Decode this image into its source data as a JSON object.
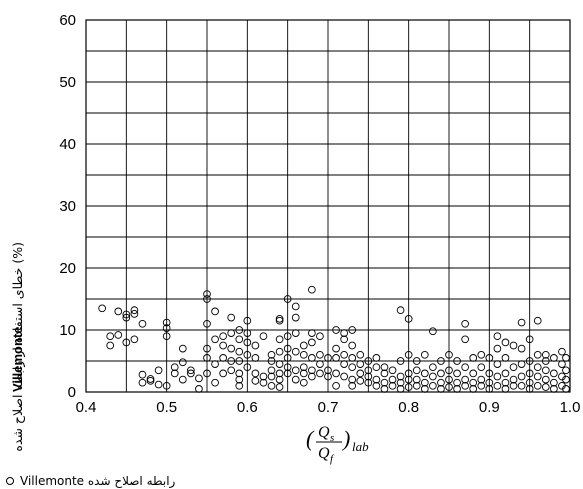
{
  "chart_data": {
    "type": "scatter",
    "xlim": [
      0.4,
      1.0
    ],
    "ylim": [
      0,
      60
    ],
    "x_ticks": [
      "0.4",
      "0.5",
      "0.6",
      "0.7",
      "0.8",
      "0.9",
      "1.0"
    ],
    "y_ticks": [
      "0",
      "10",
      "20",
      "30",
      "40",
      "50",
      "60"
    ],
    "grid": true,
    "xlabel": {
      "numerator": "Q",
      "numerator_sub": "s",
      "denominator": "Q",
      "denominator_sub": "f",
      "suffix": "lab"
    },
    "ylabel": {
      "prefix": "Villemonte",
      "text": "(%) خطای استفاده از رابطه اصلاح شده"
    },
    "legend": {
      "position": "bottom-left",
      "label": "رابطه اصلاح شده Villemonte"
    },
    "series": [
      {
        "marker": "open-circle",
        "color": "#000000",
        "points": [
          [
            0.42,
            13.5
          ],
          [
            0.43,
            9.0
          ],
          [
            0.43,
            7.5
          ],
          [
            0.44,
            9.2
          ],
          [
            0.44,
            13.0
          ],
          [
            0.45,
            12.5
          ],
          [
            0.45,
            8.0
          ],
          [
            0.45,
            12.0
          ],
          [
            0.46,
            13.2
          ],
          [
            0.46,
            12.6
          ],
          [
            0.46,
            8.5
          ],
          [
            0.47,
            11.0
          ],
          [
            0.47,
            1.5
          ],
          [
            0.47,
            2.8
          ],
          [
            0.48,
            2.1
          ],
          [
            0.48,
            1.8
          ],
          [
            0.49,
            3.5
          ],
          [
            0.49,
            1.2
          ],
          [
            0.5,
            11.2
          ],
          [
            0.5,
            10.3
          ],
          [
            0.5,
            9.0
          ],
          [
            0.5,
            1.0
          ],
          [
            0.51,
            4.0
          ],
          [
            0.51,
            3.0
          ],
          [
            0.52,
            2.0
          ],
          [
            0.52,
            7.0
          ],
          [
            0.52,
            4.8
          ],
          [
            0.53,
            3.5
          ],
          [
            0.53,
            3.0
          ],
          [
            0.54,
            0.5
          ],
          [
            0.54,
            2.2
          ],
          [
            0.55,
            15.8
          ],
          [
            0.55,
            15.0
          ],
          [
            0.55,
            11.0
          ],
          [
            0.55,
            7.0
          ],
          [
            0.55,
            5.5
          ],
          [
            0.55,
            3.0
          ],
          [
            0.56,
            13.0
          ],
          [
            0.56,
            8.5
          ],
          [
            0.56,
            4.5
          ],
          [
            0.56,
            1.5
          ],
          [
            0.57,
            9.0
          ],
          [
            0.57,
            7.5
          ],
          [
            0.57,
            5.5
          ],
          [
            0.57,
            3.0
          ],
          [
            0.58,
            12.0
          ],
          [
            0.58,
            9.5
          ],
          [
            0.58,
            7.0
          ],
          [
            0.58,
            5.0
          ],
          [
            0.58,
            3.5
          ],
          [
            0.59,
            10.0
          ],
          [
            0.59,
            8.5
          ],
          [
            0.59,
            6.5
          ],
          [
            0.59,
            5.0
          ],
          [
            0.59,
            3.0
          ],
          [
            0.59,
            2.0
          ],
          [
            0.59,
            1.0
          ],
          [
            0.6,
            11.5
          ],
          [
            0.6,
            9.5
          ],
          [
            0.6,
            8.0
          ],
          [
            0.6,
            6.0
          ],
          [
            0.6,
            4.0
          ],
          [
            0.61,
            7.5
          ],
          [
            0.61,
            5.5
          ],
          [
            0.61,
            3.0
          ],
          [
            0.61,
            1.8
          ],
          [
            0.62,
            2.5
          ],
          [
            0.62,
            1.5
          ],
          [
            0.62,
            9.0
          ],
          [
            0.63,
            6.0
          ],
          [
            0.63,
            5.0
          ],
          [
            0.63,
            3.5
          ],
          [
            0.63,
            2.5
          ],
          [
            0.63,
            1.0
          ],
          [
            0.64,
            11.5
          ],
          [
            0.64,
            11.8
          ],
          [
            0.64,
            8.5
          ],
          [
            0.64,
            6.5
          ],
          [
            0.64,
            4.5
          ],
          [
            0.64,
            3.0
          ],
          [
            0.64,
            2.0
          ],
          [
            0.64,
            0.8
          ],
          [
            0.65,
            15.0
          ],
          [
            0.65,
            9.0
          ],
          [
            0.65,
            7.0
          ],
          [
            0.65,
            5.5
          ],
          [
            0.65,
            4.0
          ],
          [
            0.65,
            3.0
          ],
          [
            0.66,
            12.0
          ],
          [
            0.66,
            13.8
          ],
          [
            0.66,
            9.5
          ],
          [
            0.66,
            6.5
          ],
          [
            0.66,
            3.5
          ],
          [
            0.66,
            2.0
          ],
          [
            0.67,
            7.5
          ],
          [
            0.67,
            6.0
          ],
          [
            0.67,
            4.0
          ],
          [
            0.67,
            3.0
          ],
          [
            0.67,
            1.5
          ],
          [
            0.68,
            16.5
          ],
          [
            0.68,
            9.5
          ],
          [
            0.68,
            8.0
          ],
          [
            0.68,
            5.5
          ],
          [
            0.68,
            3.5
          ],
          [
            0.68,
            2.5
          ],
          [
            0.69,
            9.0
          ],
          [
            0.69,
            6.0
          ],
          [
            0.69,
            4.5
          ],
          [
            0.69,
            3.0
          ],
          [
            0.7,
            5.5
          ],
          [
            0.7,
            3.5
          ],
          [
            0.7,
            2.5
          ],
          [
            0.71,
            10.0
          ],
          [
            0.71,
            7.0
          ],
          [
            0.71,
            5.5
          ],
          [
            0.71,
            3.0
          ],
          [
            0.71,
            1.0
          ],
          [
            0.72,
            9.5
          ],
          [
            0.72,
            8.5
          ],
          [
            0.72,
            6.0
          ],
          [
            0.72,
            4.5
          ],
          [
            0.72,
            2.5
          ],
          [
            0.73,
            10.0
          ],
          [
            0.73,
            7.5
          ],
          [
            0.73,
            5.5
          ],
          [
            0.73,
            4.0
          ],
          [
            0.73,
            2.0
          ],
          [
            0.73,
            1.0
          ],
          [
            0.74,
            6.0
          ],
          [
            0.74,
            4.5
          ],
          [
            0.74,
            3.0
          ],
          [
            0.74,
            1.8
          ],
          [
            0.75,
            5.0
          ],
          [
            0.75,
            3.5
          ],
          [
            0.75,
            2.5
          ],
          [
            0.75,
            1.5
          ],
          [
            0.76,
            5.5
          ],
          [
            0.76,
            4.0
          ],
          [
            0.76,
            2.0
          ],
          [
            0.76,
            1.0
          ],
          [
            0.77,
            4.0
          ],
          [
            0.77,
            3.0
          ],
          [
            0.77,
            1.5
          ],
          [
            0.77,
            0.5
          ],
          [
            0.78,
            3.5
          ],
          [
            0.78,
            2.0
          ],
          [
            0.78,
            1.0
          ],
          [
            0.79,
            13.2
          ],
          [
            0.79,
            5.0
          ],
          [
            0.79,
            2.5
          ],
          [
            0.79,
            1.5
          ],
          [
            0.79,
            0.5
          ],
          [
            0.8,
            11.8
          ],
          [
            0.8,
            6.0
          ],
          [
            0.8,
            3.0
          ],
          [
            0.8,
            2.0
          ],
          [
            0.8,
            0.8
          ],
          [
            0.81,
            5.0
          ],
          [
            0.81,
            3.5
          ],
          [
            0.81,
            2.0
          ],
          [
            0.81,
            1.0
          ],
          [
            0.82,
            6.0
          ],
          [
            0.82,
            3.0
          ],
          [
            0.82,
            1.5
          ],
          [
            0.82,
            0.5
          ],
          [
            0.83,
            9.8
          ],
          [
            0.83,
            4.0
          ],
          [
            0.83,
            2.5
          ],
          [
            0.83,
            1.0
          ],
          [
            0.84,
            5.0
          ],
          [
            0.84,
            3.0
          ],
          [
            0.84,
            1.5
          ],
          [
            0.84,
            0.5
          ],
          [
            0.85,
            6.0
          ],
          [
            0.85,
            3.5
          ],
          [
            0.85,
            2.0
          ],
          [
            0.85,
            0.8
          ],
          [
            0.86,
            5.0
          ],
          [
            0.86,
            3.0
          ],
          [
            0.86,
            1.5
          ],
          [
            0.86,
            0.5
          ],
          [
            0.87,
            11.0
          ],
          [
            0.87,
            8.5
          ],
          [
            0.87,
            4.0
          ],
          [
            0.87,
            2.0
          ],
          [
            0.87,
            1.0
          ],
          [
            0.88,
            5.5
          ],
          [
            0.88,
            3.0
          ],
          [
            0.88,
            1.5
          ],
          [
            0.88,
            0.5
          ],
          [
            0.89,
            6.0
          ],
          [
            0.89,
            4.0
          ],
          [
            0.89,
            2.0
          ],
          [
            0.89,
            1.0
          ],
          [
            0.9,
            5.5
          ],
          [
            0.9,
            3.0
          ],
          [
            0.9,
            1.5
          ],
          [
            0.9,
            0.5
          ],
          [
            0.91,
            9.0
          ],
          [
            0.91,
            7.0
          ],
          [
            0.91,
            4.5
          ],
          [
            0.91,
            2.5
          ],
          [
            0.91,
            1.0
          ],
          [
            0.92,
            8.0
          ],
          [
            0.92,
            5.5
          ],
          [
            0.92,
            3.0
          ],
          [
            0.92,
            1.5
          ],
          [
            0.92,
            0.5
          ],
          [
            0.93,
            7.5
          ],
          [
            0.93,
            4.0
          ],
          [
            0.93,
            2.0
          ],
          [
            0.93,
            1.0
          ],
          [
            0.94,
            11.2
          ],
          [
            0.94,
            7.0
          ],
          [
            0.94,
            4.5
          ],
          [
            0.94,
            2.5
          ],
          [
            0.94,
            1.0
          ],
          [
            0.95,
            8.5
          ],
          [
            0.95,
            5.0
          ],
          [
            0.95,
            3.0
          ],
          [
            0.95,
            1.5
          ],
          [
            0.95,
            0.5
          ],
          [
            0.96,
            11.5
          ],
          [
            0.96,
            6.0
          ],
          [
            0.96,
            4.0
          ],
          [
            0.96,
            2.5
          ],
          [
            0.96,
            1.0
          ],
          [
            0.97,
            6.0
          ],
          [
            0.97,
            5.0
          ],
          [
            0.97,
            3.5
          ],
          [
            0.97,
            2.0
          ],
          [
            0.97,
            0.8
          ],
          [
            0.98,
            5.5
          ],
          [
            0.98,
            3.0
          ],
          [
            0.98,
            1.5
          ],
          [
            0.98,
            0.5
          ],
          [
            0.99,
            6.5
          ],
          [
            0.99,
            4.5
          ],
          [
            0.99,
            2.5
          ],
          [
            0.99,
            1.0
          ],
          [
            0.995,
            5.5
          ],
          [
            0.995,
            3.5
          ],
          [
            0.995,
            2.0
          ],
          [
            0.995,
            0.5
          ]
        ]
      }
    ]
  }
}
